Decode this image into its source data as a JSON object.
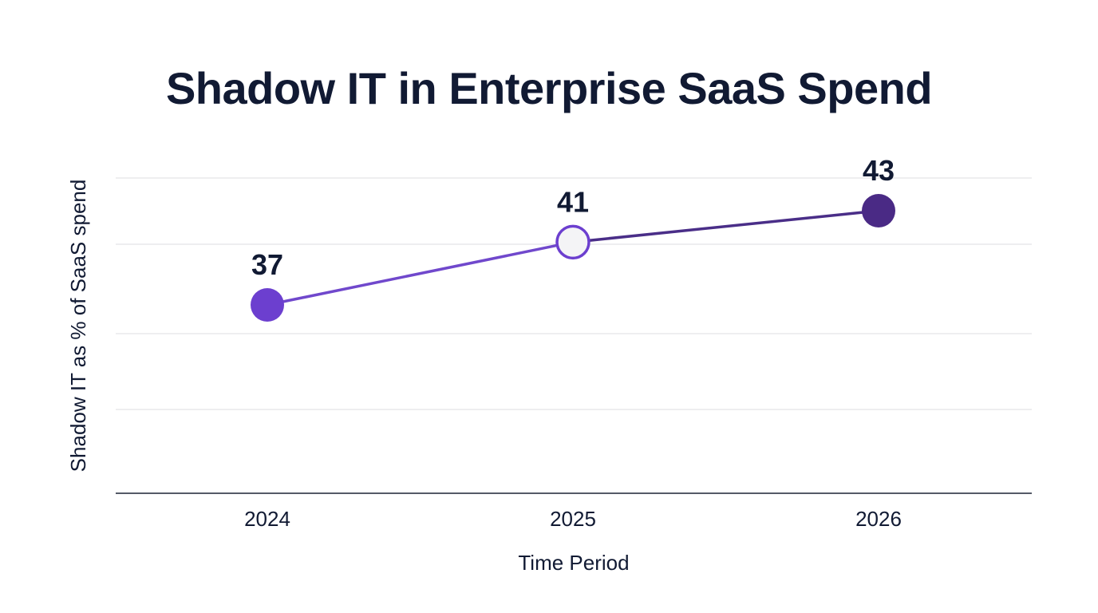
{
  "chart_data": {
    "type": "line",
    "title": "Shadow IT in Enterprise SaaS Spend",
    "xlabel": "Time Period",
    "ylabel": "Shadow IT as % of SaaS spend",
    "categories": [
      "2024",
      "2025",
      "2026"
    ],
    "series": [
      {
        "values": [
          37,
          41,
          43
        ],
        "point_colors": [
          "#6c3fcf",
          "#f4f4f6",
          "#4a2a85"
        ],
        "point_stroke": "#6c3fcf",
        "line_colors": [
          "#6b44c8",
          "#3f2a78"
        ]
      }
    ],
    "data_labels": [
      "37",
      "41",
      "43"
    ],
    "ylim": [
      30,
      45
    ],
    "grid": true,
    "legend": "none"
  },
  "colors": {
    "text": "#111a33",
    "grid": "#e3e3e6",
    "axis": "#1b2335"
  }
}
